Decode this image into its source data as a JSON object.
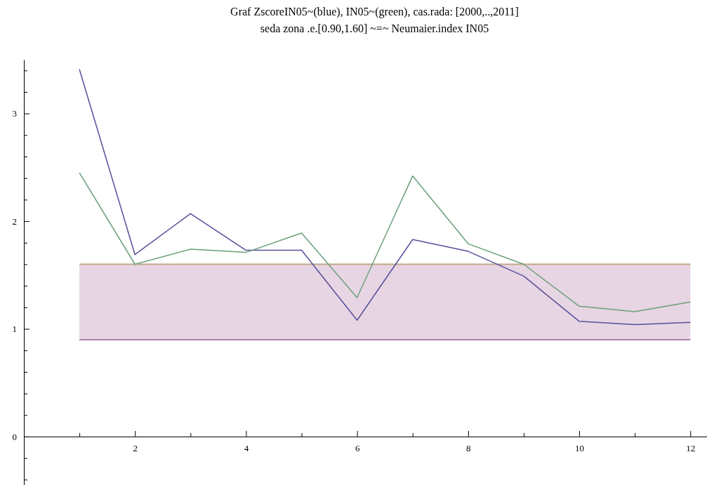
{
  "chart_data": {
    "type": "line",
    "title": "Graf ZscoreIN05~(blue), IN05~(green), cas.rada: [2000,..,2011]",
    "subtitle": "seda zona .e.[0.90,1.60] ~=~ Neumaier.index IN05",
    "x": [
      1,
      2,
      3,
      4,
      5,
      6,
      7,
      8,
      9,
      10,
      11,
      12
    ],
    "series": [
      {
        "color": "#55509a",
        "values": [
          3.41,
          1.69,
          2.07,
          1.73,
          1.73,
          1.08,
          1.83,
          1.72,
          1.49,
          1.07,
          1.04,
          1.06
        ]
      },
      {
        "color": "#6a9f7a",
        "values": [
          2.45,
          1.6,
          1.74,
          1.71,
          1.89,
          1.29,
          2.42,
          1.79,
          1.6,
          1.21,
          1.16,
          1.25
        ]
      }
    ],
    "bands": [
      {
        "axis": "y",
        "from": 0.9,
        "to": 1.6,
        "color": "#e8d5e3"
      }
    ],
    "ref_lines": [
      {
        "axis": "y",
        "value": 1.6,
        "color": "#c2a88a"
      },
      {
        "axis": "y",
        "value": 0.9,
        "color": "#b080b0"
      }
    ],
    "xlim": [
      0,
      12.3
    ],
    "ylim": [
      -0.45,
      3.5
    ],
    "xticks": [
      {
        "value": 1,
        "label": null
      },
      2,
      {
        "value": 3,
        "label": null
      },
      4,
      {
        "value": 5,
        "label": null
      },
      6,
      {
        "value": 7,
        "label": null
      },
      8,
      {
        "value": 9,
        "label": null
      },
      10,
      {
        "value": 11,
        "label": null
      },
      12
    ],
    "yticks": [
      {
        "value": -0.4,
        "label": null
      },
      {
        "value": -0.2,
        "label": null
      },
      0,
      {
        "value": 0.2,
        "label": null
      },
      {
        "value": 0.4,
        "label": null
      },
      {
        "value": 0.6,
        "label": null
      },
      {
        "value": 0.8,
        "label": null
      },
      1,
      {
        "value": 1.2,
        "label": null
      },
      {
        "value": 1.4,
        "label": null
      },
      {
        "value": 1.6,
        "label": null
      },
      {
        "value": 1.8,
        "label": null
      },
      2,
      {
        "value": 2.2,
        "label": null
      },
      {
        "value": 2.4,
        "label": null
      },
      {
        "value": 2.6,
        "label": null
      },
      {
        "value": 2.8,
        "label": null
      },
      3,
      {
        "value": 3.2,
        "label": null
      },
      {
        "value": 3.4,
        "label": null
      }
    ],
    "grid": false,
    "marker": "none",
    "line_style": "solid"
  }
}
